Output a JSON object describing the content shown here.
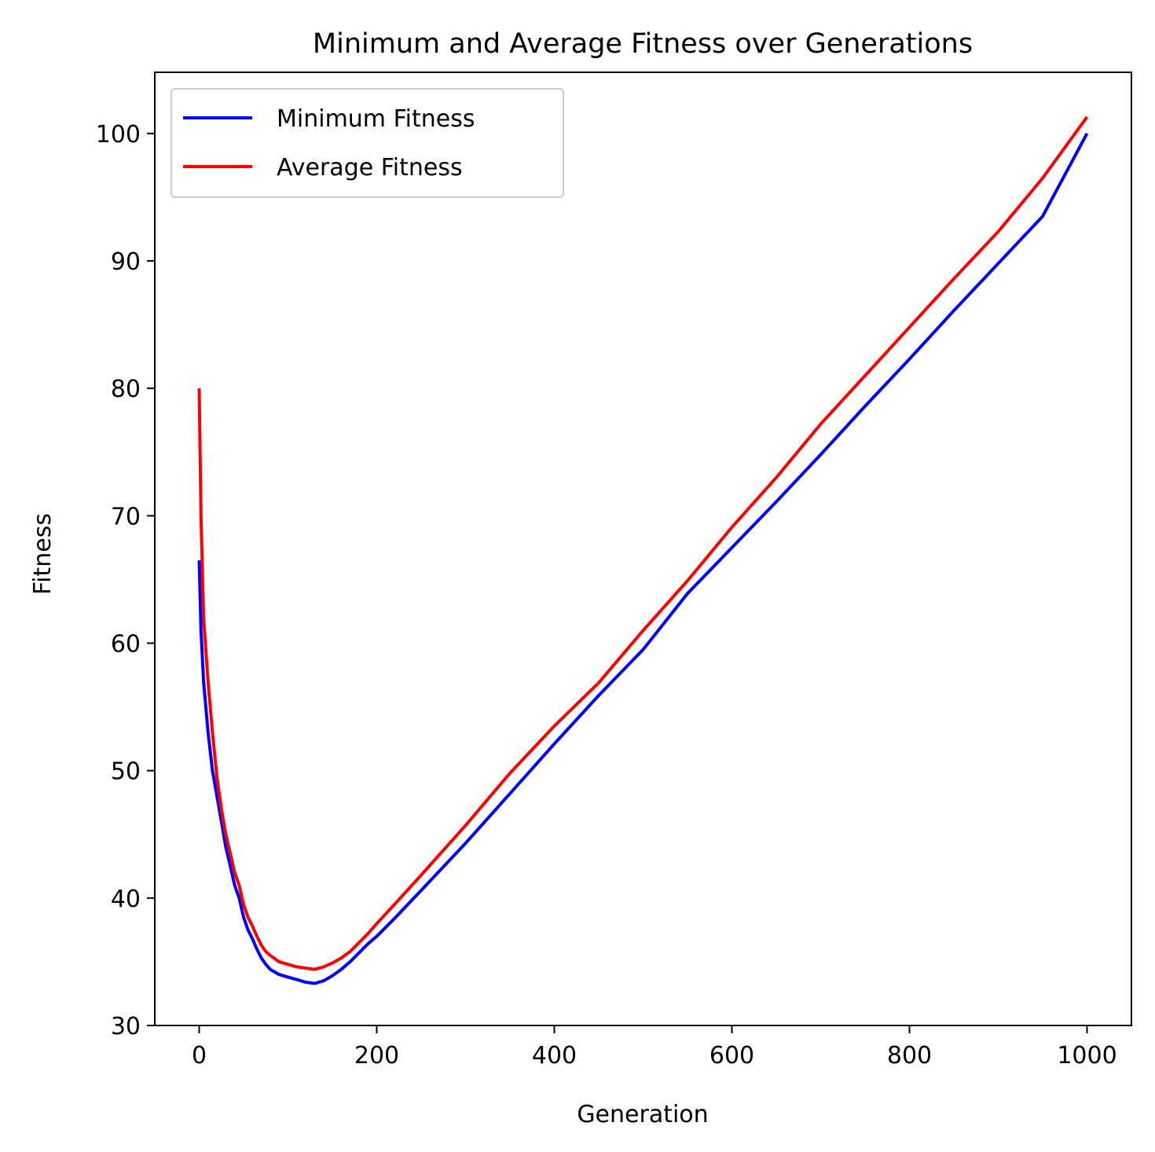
{
  "chart_data": {
    "type": "line",
    "title": "Minimum and Average Fitness over Generations",
    "xlabel": "Generation",
    "ylabel": "Fitness",
    "xlim": [
      -50,
      1050
    ],
    "ylim": [
      30,
      104.8
    ],
    "xticks": [
      0,
      200,
      400,
      600,
      800,
      1000
    ],
    "xtick_labels": [
      "0",
      "200",
      "400",
      "600",
      "800",
      "1000"
    ],
    "yticks": [
      30,
      40,
      50,
      60,
      70,
      80,
      90,
      100
    ],
    "ytick_labels": [
      "30",
      "40",
      "50",
      "60",
      "70",
      "80",
      "90",
      "100"
    ],
    "grid": false,
    "legend_position": "top-left",
    "series": [
      {
        "name": "Minimum Fitness",
        "color": "#0000ff",
        "x": [
          0,
          2,
          5,
          10,
          15,
          20,
          25,
          30,
          35,
          40,
          45,
          50,
          55,
          60,
          65,
          70,
          75,
          80,
          90,
          100,
          110,
          120,
          130,
          140,
          150,
          160,
          170,
          180,
          190,
          200,
          220,
          250,
          300,
          350,
          400,
          450,
          500,
          550,
          600,
          650,
          700,
          750,
          800,
          850,
          900,
          950,
          1000
        ],
        "y": [
          66.5,
          61.0,
          57.0,
          53.0,
          50.0,
          48.0,
          46.0,
          44.0,
          42.5,
          41.0,
          40.0,
          38.5,
          37.5,
          36.8,
          36.0,
          35.3,
          34.8,
          34.4,
          34.0,
          33.8,
          33.6,
          33.4,
          33.3,
          33.5,
          33.9,
          34.4,
          35.0,
          35.7,
          36.4,
          37.0,
          38.4,
          40.6,
          44.3,
          48.2,
          52.1,
          55.9,
          59.5,
          63.9,
          67.5,
          71.1,
          74.8,
          78.6,
          82.3,
          86.1,
          89.8,
          93.5,
          100.0
        ]
      },
      {
        "name": "Average Fitness",
        "color": "#ff0000",
        "x": [
          0,
          2,
          5,
          10,
          15,
          20,
          25,
          30,
          35,
          40,
          45,
          50,
          55,
          60,
          65,
          70,
          75,
          80,
          90,
          100,
          110,
          120,
          130,
          140,
          150,
          160,
          170,
          180,
          190,
          200,
          220,
          250,
          300,
          350,
          400,
          450,
          500,
          550,
          600,
          650,
          700,
          750,
          800,
          850,
          900,
          950,
          1000
        ],
        "y": [
          80.0,
          70.0,
          62.0,
          57.0,
          53.0,
          49.5,
          47.0,
          45.0,
          43.5,
          42.0,
          41.0,
          39.5,
          38.5,
          37.8,
          37.0,
          36.3,
          35.8,
          35.5,
          35.0,
          34.8,
          34.6,
          34.5,
          34.4,
          34.6,
          34.9,
          35.3,
          35.8,
          36.5,
          37.2,
          38.0,
          39.5,
          41.8,
          45.7,
          49.8,
          53.5,
          56.9,
          61.0,
          64.9,
          69.1,
          73.0,
          77.2,
          81.0,
          84.8,
          88.6,
          92.3,
          96.5,
          101.3
        ]
      }
    ]
  }
}
